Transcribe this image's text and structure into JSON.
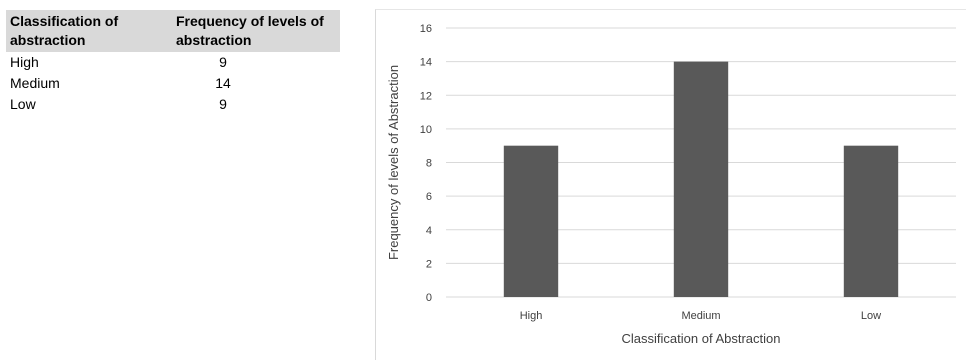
{
  "table": {
    "headers": [
      "Classification of abstraction",
      "Frequency of levels of abstraction"
    ],
    "rows": [
      {
        "label": "High",
        "value": "9"
      },
      {
        "label": "Medium",
        "value": "14"
      },
      {
        "label": "Low",
        "value": "9"
      }
    ]
  },
  "chart_data": {
    "type": "bar",
    "categories": [
      "High",
      "Medium",
      "Low"
    ],
    "values": [
      9,
      14,
      9
    ],
    "title": "",
    "xlabel": "Classification of Abstraction",
    "ylabel": "Frequency of levels of Abstraction",
    "ylim": [
      0,
      16
    ],
    "yticks": [
      0,
      2,
      4,
      6,
      8,
      10,
      12,
      14,
      16
    ],
    "grid": true,
    "legend": "none",
    "bar_color": "#595959",
    "grid_color": "#d9d9d9"
  }
}
